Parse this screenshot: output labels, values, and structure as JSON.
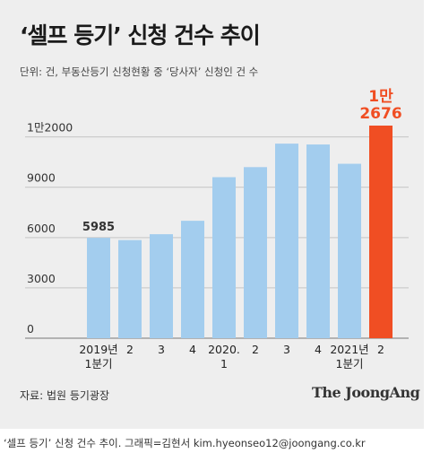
{
  "header": {
    "title": "‘셀프 등기’ 신청 건수 추이",
    "unit": "단위: 건, 부동산등기 신청현황 중 ‘당사자’ 신청인 건 수"
  },
  "footer": {
    "source": "자료: 법원 등기광장",
    "logo": "The JoongAng",
    "caption": "‘셀프 등기’ 신청 건수 추이. 그래픽=김현서 kim.hyeonseo12@joongang.co.kr"
  },
  "chart_data": {
    "type": "bar",
    "title": "‘셀프 등기’ 신청 건수 추이",
    "categories": [
      [
        "2019년",
        "1분기"
      ],
      [
        "2"
      ],
      [
        "3"
      ],
      [
        "4"
      ],
      [
        "2020.",
        "1"
      ],
      [
        "2"
      ],
      [
        "3"
      ],
      [
        "4"
      ],
      [
        "2021년",
        "1분기"
      ],
      [
        "2"
      ]
    ],
    "values": [
      5985,
      5850,
      6200,
      7000,
      9600,
      10200,
      11600,
      11550,
      10400,
      12676
    ],
    "y_ticks": [
      0,
      3000,
      6000,
      9000,
      12000
    ],
    "y_tick_labels": [
      "0",
      "3000",
      "6000",
      "9000",
      "1만2000"
    ],
    "ylim": [
      0,
      12676
    ],
    "annotations": [
      {
        "index": 0,
        "lines": [
          "5985"
        ]
      },
      {
        "index": 9,
        "lines": [
          "1만",
          "2676"
        ]
      }
    ],
    "bar_color": "#a3cdee",
    "highlight_index": 9,
    "highlight_color": "#f04e23",
    "grid": true
  }
}
